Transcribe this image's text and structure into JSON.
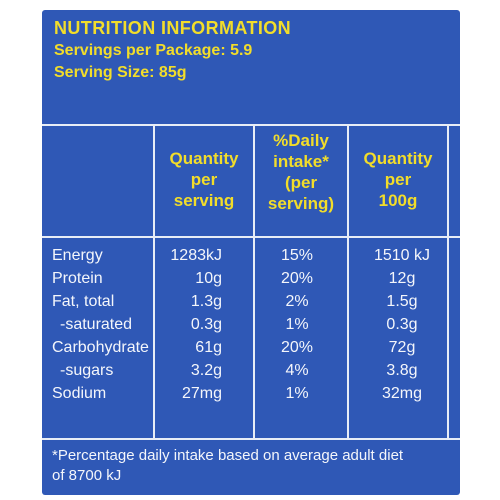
{
  "header": {
    "title": "NUTRITION INFORMATION",
    "servings_per_package": "Servings per Package: 5.9",
    "serving_size": "Serving Size: 85g"
  },
  "columns": {
    "per_serving": [
      "Quantity",
      "per",
      "serving"
    ],
    "daily_intake": [
      "%Daily",
      "intake*",
      "(per",
      "serving)"
    ],
    "per_100g": [
      "Quantity",
      "per",
      "100g"
    ]
  },
  "rows": [
    {
      "name": "Energy",
      "per_serving": "1283kJ",
      "daily_intake": "15%",
      "per_100g": "1510 kJ"
    },
    {
      "name": "Protein",
      "per_serving": "10g",
      "daily_intake": "20%",
      "per_100g": "12g"
    },
    {
      "name": "Fat, total",
      "per_serving": "1.3g",
      "daily_intake": "2%",
      "per_100g": "1.5g"
    },
    {
      "name": "-saturated",
      "per_serving": "0.3g",
      "daily_intake": "1%",
      "per_100g": "0.3g"
    },
    {
      "name": "Carbohydrate",
      "per_serving": "61g",
      "daily_intake": "20%",
      "per_100g": "72g"
    },
    {
      "name": "-sugars",
      "per_serving": "3.2g",
      "daily_intake": "4%",
      "per_100g": "3.8g"
    },
    {
      "name": "Sodium",
      "per_serving": "27mg",
      "daily_intake": "1%",
      "per_100g": "32mg"
    }
  ],
  "footnote": {
    "line1": "*Percentage daily intake based on average adult diet",
    "line2": "of 8700 kJ"
  },
  "colors": {
    "background": "#2f58b6",
    "heading": "#f2dd2a",
    "text": "#f4f6fb",
    "rules": "#e8edf6"
  }
}
